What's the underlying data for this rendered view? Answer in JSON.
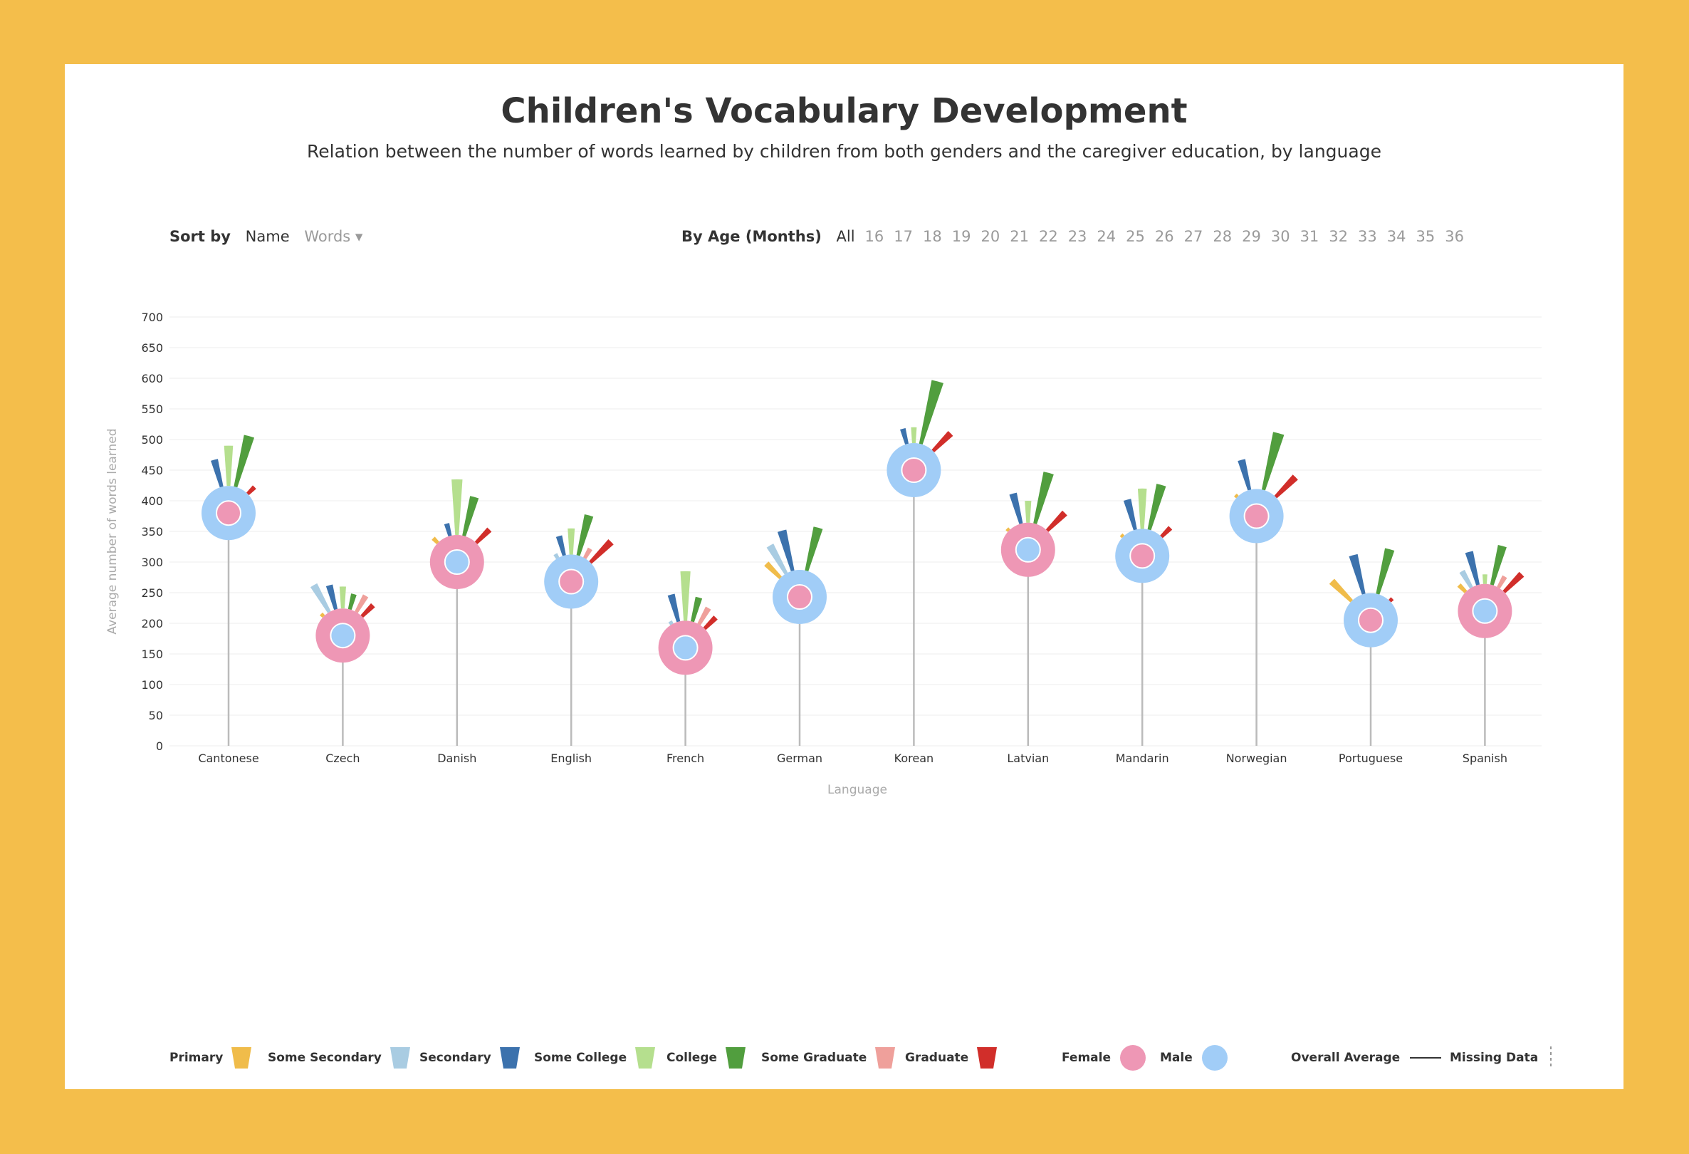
{
  "header": {
    "title": "Children's Vocabulary Development",
    "subtitle": "Relation between the number of words learned by children from both genders and the caregiver education, by language"
  },
  "controls": {
    "sort_label": "Sort by",
    "sort_options": [
      "Name",
      "Words ▾"
    ],
    "sort_active": "Name",
    "age_label": "By Age (Months)",
    "age_options": [
      "All",
      "16",
      "17",
      "18",
      "19",
      "20",
      "21",
      "22",
      "23",
      "24",
      "25",
      "26",
      "27",
      "28",
      "29",
      "30",
      "31",
      "32",
      "33",
      "34",
      "35",
      "36"
    ],
    "age_active": "All"
  },
  "chart_data": {
    "type": "lollipop-radial",
    "title": "Children's Vocabulary Development",
    "xlabel": "Language",
    "ylabel": "Average number of words learned",
    "ylim": [
      0,
      700
    ],
    "yticks": [
      0,
      50,
      100,
      150,
      200,
      250,
      300,
      350,
      400,
      450,
      500,
      550,
      600,
      650,
      700
    ],
    "grid": true,
    "education_levels": [
      "Primary",
      "Some Secondary",
      "Secondary",
      "Some College",
      "College",
      "Some Graduate",
      "Graduate"
    ],
    "languages": [
      {
        "name": "Cantonese",
        "female": 380,
        "male": 380,
        "outer": "male",
        "education": [
          null,
          null,
          470,
          490,
          510,
          null,
          440
        ]
      },
      {
        "name": "Czech",
        "female": 180,
        "male": 180,
        "outer": "female",
        "education": [
          230,
          275,
          265,
          260,
          250,
          255,
          250
        ]
      },
      {
        "name": "Danish",
        "female": 300,
        "male": 300,
        "outer": "female",
        "education": [
          355,
          null,
          365,
          435,
          410,
          null,
          375
        ]
      },
      {
        "name": "English",
        "female": 268,
        "male": 268,
        "outer": "male",
        "education": [
          null,
          320,
          345,
          355,
          380,
          330,
          360
        ]
      },
      {
        "name": "French",
        "female": 160,
        "male": 160,
        "outer": "female",
        "education": [
          null,
          210,
          250,
          285,
          245,
          235,
          230
        ]
      },
      {
        "name": "German",
        "female": 243,
        "male": 243,
        "outer": "male",
        "education": [
          320,
          340,
          355,
          null,
          360,
          null,
          null
        ]
      },
      {
        "name": "Korean",
        "female": 450,
        "male": 450,
        "outer": "male",
        "education": [
          null,
          null,
          520,
          520,
          600,
          null,
          535
        ]
      },
      {
        "name": "Latvian",
        "female": 320,
        "male": 320,
        "outer": "female",
        "education": [
          365,
          null,
          415,
          400,
          450,
          null,
          405
        ]
      },
      {
        "name": "Mandarin",
        "female": 310,
        "male": 310,
        "outer": "male",
        "education": [
          355,
          null,
          405,
          420,
          430,
          null,
          375
        ]
      },
      {
        "name": "Norwegian",
        "female": 375,
        "male": 375,
        "outer": "male",
        "education": [
          420,
          null,
          470,
          null,
          515,
          null,
          465
        ]
      },
      {
        "name": "Portuguese",
        "female": 205,
        "male": 205,
        "outer": "male",
        "education": [
          295,
          null,
          315,
          null,
          325,
          null,
          255
        ]
      },
      {
        "name": "Spanish",
        "female": 220,
        "male": 220,
        "outer": "female",
        "education": [
          280,
          295,
          320,
          280,
          330,
          285,
          305
        ]
      }
    ]
  },
  "legend": {
    "education": [
      {
        "label": "Primary",
        "color": "#F0BC4A"
      },
      {
        "label": "Some Secondary",
        "color": "#A9CCE2"
      },
      {
        "label": "Secondary",
        "color": "#3C72AD"
      },
      {
        "label": "Some College",
        "color": "#B5DF8E"
      },
      {
        "label": "College",
        "color": "#519E3E"
      },
      {
        "label": "Some Graduate",
        "color": "#EFA09B"
      },
      {
        "label": "Graduate",
        "color": "#D12E2A"
      }
    ],
    "gender": [
      {
        "label": "Female",
        "color": "#EE97B5"
      },
      {
        "label": "Male",
        "color": "#A1CDF7"
      }
    ],
    "overall_average_label": "Overall Average",
    "missing_data_label": "Missing Data"
  }
}
